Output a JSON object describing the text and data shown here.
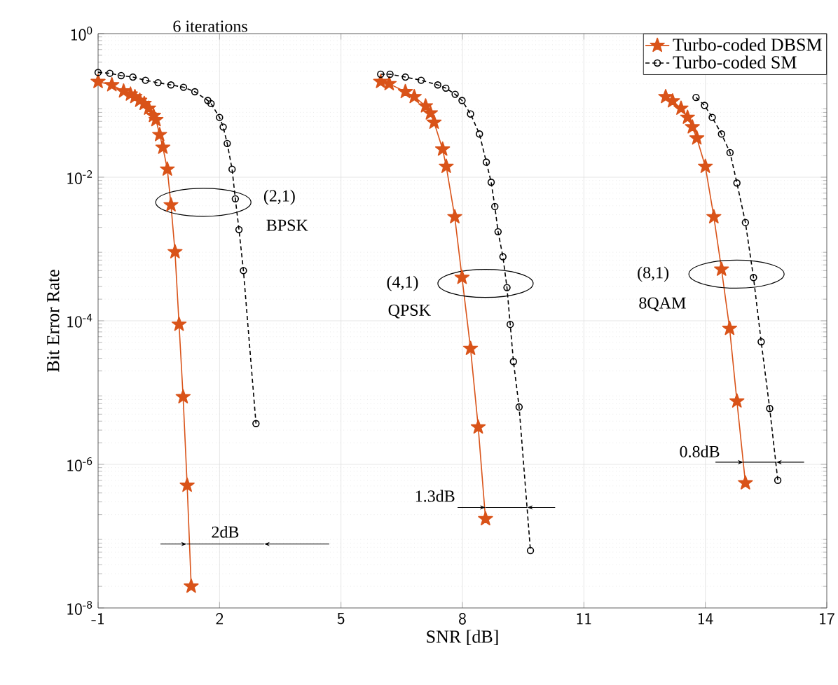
{
  "chart_data": {
    "type": "line",
    "xlabel": "SNR [dB]",
    "ylabel": "Bit Error Rate",
    "xlim": [
      -1,
      17
    ],
    "xticks": [
      -1,
      2,
      5,
      8,
      11,
      14,
      17
    ],
    "ylim": [
      1e-08,
      1
    ],
    "log": "y",
    "yticks": [
      {
        "value": 1e-08,
        "label": "10$^{-8}$"
      },
      {
        "value": 1e-06,
        "label": "10$^{-6}$"
      },
      {
        "value": 0.0001,
        "label": "10$^{-4}$"
      },
      {
        "value": 0.01,
        "label": "10$^{-2}$"
      },
      {
        "value": 1,
        "label": "10$^{0}$"
      }
    ],
    "grid": true,
    "legend": "top right",
    "series": [
      {
        "name": "Turbo-coded DBSM",
        "color": "#d95319",
        "marker": "star",
        "line_style": "solid",
        "x": [
          -1,
          -0.66,
          -0.37,
          -0.2,
          -0.09,
          0.03,
          0.14,
          0.25,
          0.37,
          0.43,
          0.52,
          0.6,
          0.71,
          0.8,
          0.9,
          1.0,
          1.1,
          1.2,
          1.3,
          null,
          5.98,
          6.19,
          6.59,
          6.81,
          7.09,
          7.21,
          7.3,
          7.51,
          7.6,
          7.81,
          7.99,
          8.2,
          8.39,
          8.57,
          null,
          13.02,
          13.19,
          13.4,
          13.56,
          13.68,
          13.79,
          14.0,
          14.21,
          14.4,
          14.6,
          14.78,
          14.99
        ],
        "values": [
          0.214,
          0.193,
          0.158,
          0.143,
          0.132,
          0.117,
          0.106,
          0.091,
          0.072,
          0.063,
          0.039,
          0.026,
          0.0129,
          0.0041,
          0.00091,
          8.9e-05,
          8.7e-06,
          5.1e-07,
          2e-08,
          null,
          0.214,
          0.2,
          0.155,
          0.132,
          0.098,
          0.078,
          0.058,
          0.0245,
          0.0141,
          0.0028,
          0.0004,
          4.1e-05,
          3.3e-06,
          1.74e-07,
          null,
          0.132,
          0.115,
          0.091,
          0.068,
          0.05,
          0.035,
          0.0141,
          0.0028,
          0.00052,
          7.8e-05,
          7.6e-06,
          5.5e-07
        ]
      },
      {
        "name": "Turbo-coded SM",
        "color": "#000000",
        "marker": "circle",
        "line_style": "dashed",
        "x": [
          -1,
          -0.71,
          -0.43,
          -0.14,
          0.17,
          0.48,
          0.8,
          1.11,
          1.39,
          1.71,
          1.79,
          2.0,
          2.09,
          2.19,
          2.31,
          2.39,
          2.48,
          2.59,
          2.9,
          null,
          5.98,
          6.21,
          6.59,
          6.98,
          7.39,
          7.59,
          7.82,
          7.99,
          8.2,
          8.42,
          8.59,
          8.71,
          8.8,
          8.88,
          9.0,
          9.1,
          9.18,
          9.26,
          9.4,
          9.68,
          null,
          13.77,
          13.98,
          14.17,
          14.4,
          14.61,
          14.78,
          14.99,
          15.19,
          15.38,
          15.59,
          15.79
        ],
        "values": [
          0.288,
          0.28,
          0.26,
          0.248,
          0.224,
          0.207,
          0.193,
          0.179,
          0.155,
          0.117,
          0.106,
          0.068,
          0.05,
          0.0295,
          0.0129,
          0.005,
          0.00186,
          0.0005,
          3.7e-06,
          null,
          0.272,
          0.272,
          0.248,
          0.224,
          0.193,
          0.174,
          0.143,
          0.117,
          0.076,
          0.04,
          0.0162,
          0.0085,
          0.0039,
          0.00174,
          0.00078,
          0.00029,
          8.9e-05,
          2.7e-05,
          6.3e-06,
          6.3e-08,
          null,
          0.129,
          0.1,
          0.068,
          0.04,
          0.022,
          0.0083,
          0.00234,
          0.0004,
          5.1e-05,
          6e-06,
          6e-07
        ]
      }
    ],
    "annotations": [
      "6 iterations",
      "(2,1)",
      "BPSK",
      "(4,1)",
      "QPSK",
      "(8,1)",
      "8QAM",
      "2dB",
      "1.3dB",
      "0.8dB"
    ]
  }
}
